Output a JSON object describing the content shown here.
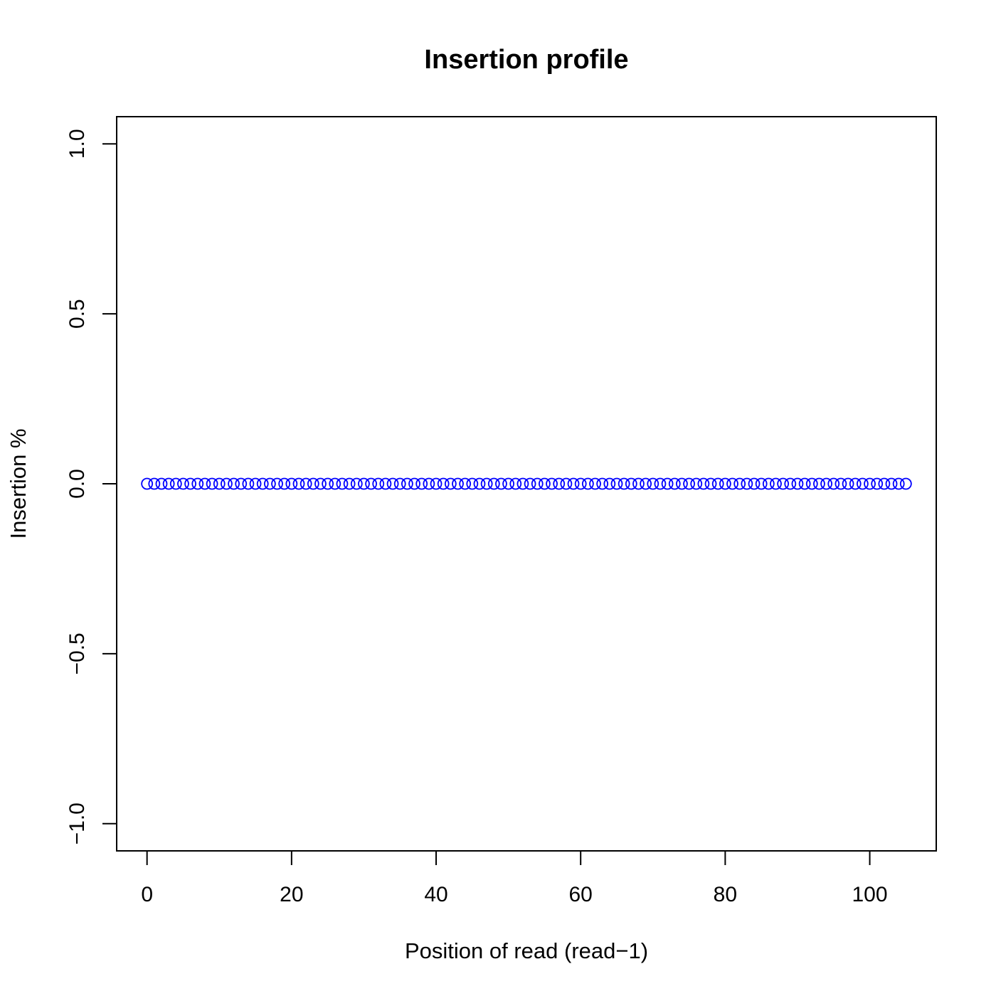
{
  "chart_data": {
    "type": "scatter",
    "title": "Insertion profile",
    "xlabel": "Position of read (read−1)",
    "ylabel": "Insertion %",
    "xlim": [
      -4.2,
      109.2
    ],
    "ylim": [
      -1.08,
      1.08
    ],
    "x_ticks": [
      0,
      20,
      40,
      60,
      80,
      100
    ],
    "x_tick_labels": [
      "0",
      "20",
      "40",
      "60",
      "80",
      "100"
    ],
    "y_ticks": [
      -1.0,
      -0.5,
      0.0,
      0.5,
      1.0
    ],
    "y_tick_labels": [
      "−1.0",
      "−0.5",
      "0.0",
      "0.5",
      "1.0"
    ],
    "grid": false,
    "marker": "open-circle",
    "point_color": "#0000ff",
    "series": [
      {
        "x_start": 0,
        "x_end": 105,
        "x_step": 1,
        "y_constant": 0
      }
    ]
  }
}
